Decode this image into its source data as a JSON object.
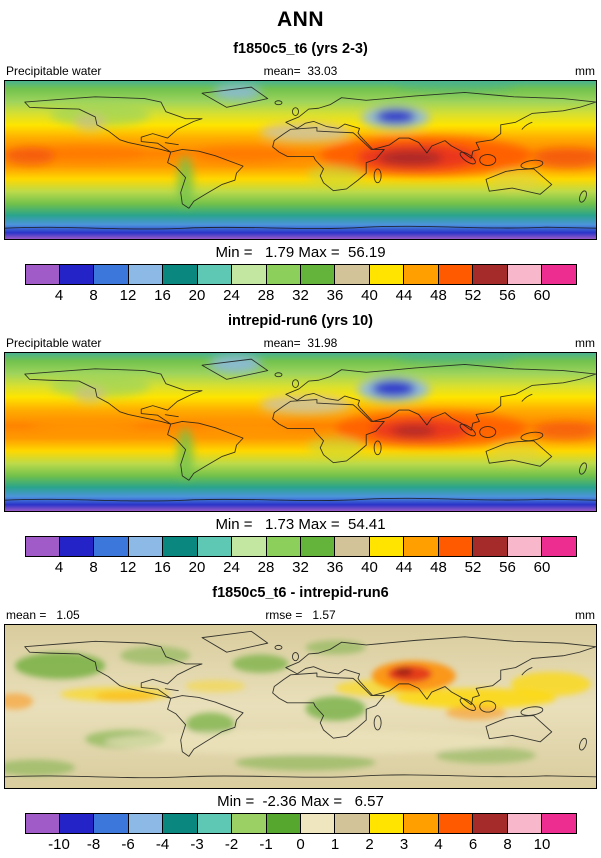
{
  "title": "ANN",
  "panels": [
    {
      "subtitle": "f1850c5_t6 (yrs 2-3)",
      "field_label": "Precipitable water",
      "mean_text": "mean=  33.03",
      "units": "mm",
      "minmax_text": "Min =   1.79 Max =  56.19",
      "colorbar_ticks": [
        "4",
        "8",
        "12",
        "16",
        "20",
        "24",
        "28",
        "32",
        "36",
        "40",
        "44",
        "48",
        "52",
        "56",
        "60"
      ],
      "colorbar_colors": [
        "#A05BC8",
        "#2323C8",
        "#3C78DC",
        "#8CB9E6",
        "#0A877F",
        "#5FC8B4",
        "#C3E6A0",
        "#8CCF5A",
        "#64B43C",
        "#D2C398",
        "#FFE400",
        "#FFA000",
        "#FF5A00",
        "#A52A2A",
        "#F9B7CB",
        "#ED2D90"
      ]
    },
    {
      "subtitle": "intrepid-run6 (yrs 10)",
      "field_label": "Precipitable water",
      "mean_text": "mean=  31.98",
      "units": "mm",
      "minmax_text": "Min =   1.73 Max =  54.41",
      "colorbar_ticks": [
        "4",
        "8",
        "12",
        "16",
        "20",
        "24",
        "28",
        "32",
        "36",
        "40",
        "44",
        "48",
        "52",
        "56",
        "60"
      ],
      "colorbar_colors": [
        "#A05BC8",
        "#2323C8",
        "#3C78DC",
        "#8CB9E6",
        "#0A877F",
        "#5FC8B4",
        "#C3E6A0",
        "#8CCF5A",
        "#64B43C",
        "#D2C398",
        "#FFE400",
        "#FFA000",
        "#FF5A00",
        "#A52A2A",
        "#F9B7CB",
        "#ED2D90"
      ]
    },
    {
      "subtitle": "f1850c5_t6 - intrepid-run6",
      "mean_text": "mean =   1.05",
      "rmse_text": "rmse =   1.57",
      "units": "mm",
      "minmax_text": "Min =  -2.36 Max =   6.57",
      "colorbar_ticks": [
        "-10",
        "-8",
        "-6",
        "-4",
        "-3",
        "-2",
        "-1",
        "0",
        "1",
        "2",
        "3",
        "4",
        "6",
        "8",
        "10"
      ],
      "colorbar_colors": [
        "#A05BC8",
        "#2323C8",
        "#3C78DC",
        "#8CB9E6",
        "#0A877F",
        "#5FC8B4",
        "#9BD164",
        "#55A82D",
        "#EFE6C0",
        "#D2C398",
        "#FFE400",
        "#FFA000",
        "#FF5A00",
        "#A52A2A",
        "#F9B7CB",
        "#ED2D90"
      ]
    }
  ],
  "chart_data": [
    {
      "type": "heatmap",
      "title": "f1850c5_t6 (yrs 2-3)",
      "variable": "Precipitable water",
      "units": "mm",
      "stats": {
        "mean": 33.03,
        "min": 1.79,
        "max": 56.19
      },
      "contour_levels": [
        4,
        8,
        12,
        16,
        20,
        24,
        28,
        32,
        36,
        40,
        44,
        48,
        52,
        56,
        60
      ],
      "palette": [
        "#A05BC8",
        "#2323C8",
        "#3C78DC",
        "#8CB9E6",
        "#0A877F",
        "#5FC8B4",
        "#C3E6A0",
        "#8CCF5A",
        "#64B43C",
        "#D2C398",
        "#FFE400",
        "#FFA000",
        "#FF5A00",
        "#A52A2A",
        "#F9B7CB",
        "#ED2D90"
      ],
      "projection": "global latitude-longitude filled contour map with coastlines",
      "legend_position": "bottom"
    },
    {
      "type": "heatmap",
      "title": "intrepid-run6 (yrs 10)",
      "variable": "Precipitable water",
      "units": "mm",
      "stats": {
        "mean": 31.98,
        "min": 1.73,
        "max": 54.41
      },
      "contour_levels": [
        4,
        8,
        12,
        16,
        20,
        24,
        28,
        32,
        36,
        40,
        44,
        48,
        52,
        56,
        60
      ],
      "palette": [
        "#A05BC8",
        "#2323C8",
        "#3C78DC",
        "#8CB9E6",
        "#0A877F",
        "#5FC8B4",
        "#C3E6A0",
        "#8CCF5A",
        "#64B43C",
        "#D2C398",
        "#FFE400",
        "#FFA000",
        "#FF5A00",
        "#A52A2A",
        "#F9B7CB",
        "#ED2D90"
      ],
      "projection": "global latitude-longitude filled contour map with coastlines",
      "legend_position": "bottom"
    },
    {
      "type": "heatmap",
      "title": "f1850c5_t6 - intrepid-run6",
      "units": "mm",
      "stats": {
        "mean": 1.05,
        "rmse": 1.57,
        "min": -2.36,
        "max": 6.57
      },
      "contour_levels": [
        -10,
        -8,
        -6,
        -4,
        -3,
        -2,
        -1,
        0,
        1,
        2,
        3,
        4,
        6,
        8,
        10
      ],
      "palette": [
        "#A05BC8",
        "#2323C8",
        "#3C78DC",
        "#8CB9E6",
        "#0A877F",
        "#5FC8B4",
        "#9BD164",
        "#55A82D",
        "#EFE6C0",
        "#D2C398",
        "#FFE400",
        "#FFA000",
        "#FF5A00",
        "#A52A2A",
        "#F9B7CB",
        "#ED2D90"
      ],
      "projection": "global latitude-longitude filled contour map with coastlines",
      "legend_position": "bottom"
    }
  ]
}
